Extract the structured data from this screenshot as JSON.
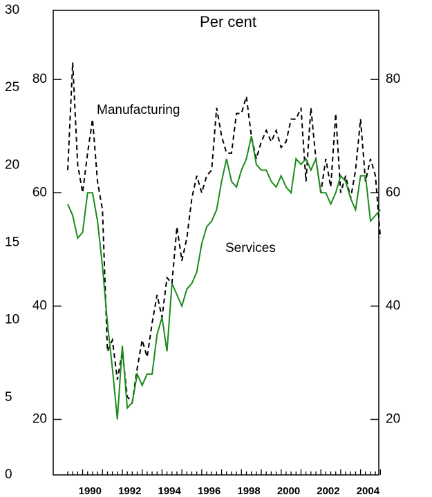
{
  "chart_data": {
    "type": "line",
    "annotations": [
      "Per cent"
    ],
    "categories": [
      null,
      null,
      null,
      null,
      "1990",
      null,
      null,
      null,
      null,
      null,
      null,
      null,
      "1992",
      null,
      null,
      null,
      null,
      null,
      null,
      null,
      "1994",
      null,
      null,
      null,
      null,
      null,
      null,
      null,
      "1996",
      null,
      null,
      null,
      null,
      null,
      null,
      null,
      "1998",
      null,
      null,
      null,
      null,
      null,
      null,
      null,
      "2000",
      null,
      null,
      null,
      null,
      null,
      null,
      null,
      "2002",
      null,
      null,
      null,
      null,
      null,
      null,
      null,
      "2004",
      null,
      null,
      null
    ],
    "series": [
      {
        "name": "Manufacturing",
        "color": "#000000",
        "dashed": true,
        "values": [
          64,
          83,
          65,
          60,
          67,
          73,
          62,
          57,
          32,
          34,
          27,
          32,
          24,
          23,
          29,
          34,
          31,
          37,
          42,
          38,
          45,
          44,
          54,
          48,
          52,
          59,
          63,
          60,
          63,
          64,
          75,
          70,
          67,
          67,
          74,
          74,
          77,
          70,
          66,
          69,
          71,
          69,
          71,
          68,
          69,
          73,
          73,
          75,
          62,
          75,
          66,
          60,
          66,
          61,
          74,
          60,
          63,
          59,
          64,
          73,
          62,
          66,
          63,
          52
        ]
      },
      {
        "name": "Services",
        "color": "#1a8a1a",
        "dashed": false,
        "values": [
          58,
          56,
          52,
          53,
          60,
          60,
          55,
          47,
          37,
          29,
          20,
          33,
          22,
          23,
          28,
          26,
          28,
          28,
          35,
          38,
          32,
          44,
          42,
          40,
          43,
          44,
          46,
          51,
          54,
          55,
          57,
          62,
          66,
          62,
          61,
          64,
          66,
          70,
          65,
          64,
          64,
          62,
          61,
          63,
          61,
          60,
          66,
          65,
          66,
          64,
          66,
          60,
          60,
          58,
          60,
          63,
          62,
          59,
          57,
          63,
          63,
          55,
          56,
          57
        ]
      }
    ],
    "ylim": [
      10.2,
      92.2
    ],
    "yticks": [
      20,
      40,
      60,
      80
    ],
    "y2lim": [
      0,
      30
    ],
    "y2ticks": [
      0,
      5,
      10,
      15,
      20,
      25,
      30
    ]
  }
}
